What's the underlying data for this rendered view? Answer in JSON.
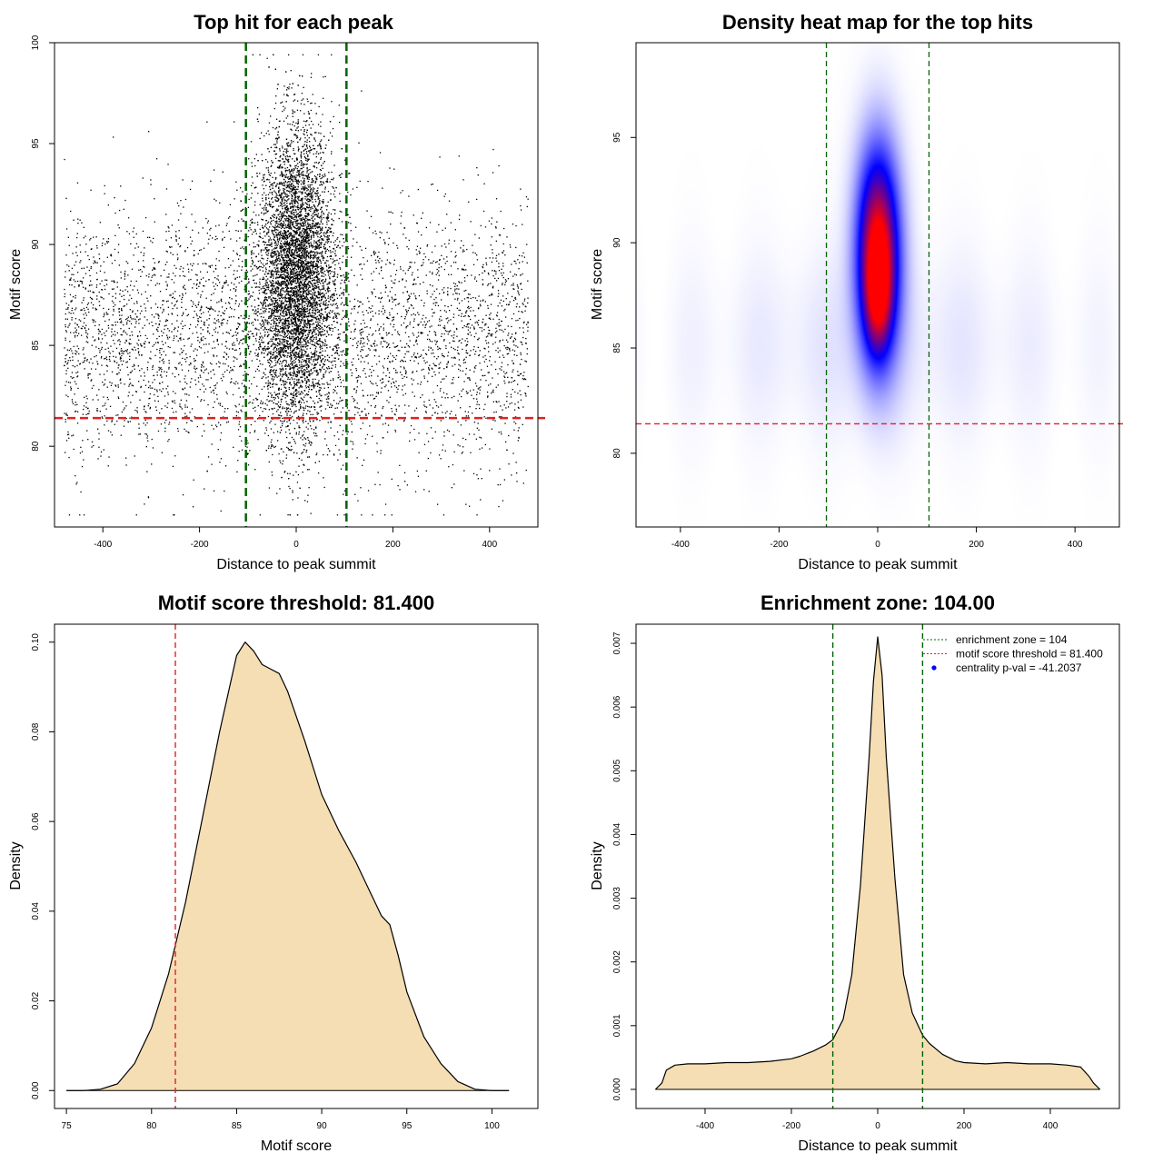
{
  "chart_data": [
    {
      "type": "scatter",
      "title": "Top hit for each peak",
      "xlabel": "Distance to peak summit",
      "ylabel": "Motif score",
      "xlim": [
        -500,
        500
      ],
      "ylim": [
        76,
        100
      ],
      "xticks": [
        -400,
        -200,
        0,
        200,
        400
      ],
      "yticks": [
        80,
        85,
        90,
        95,
        100
      ],
      "point_color": "#000000",
      "vlines": {
        "values": [
          -104,
          104
        ],
        "color": "#006400",
        "style": "dashed"
      },
      "hlines": {
        "values": [
          81.4
        ],
        "color": "#e32020",
        "style": "dashed"
      },
      "clusters": [
        {
          "x_range": [
            -480,
            480
          ],
          "y_mean": 85.5,
          "y_sd": 3.2,
          "n": 4500
        },
        {
          "x_center": 0,
          "x_sd": 38,
          "y_mean": 88.5,
          "y_sd": 3.6,
          "n": 6500
        }
      ]
    },
    {
      "type": "heatmap",
      "title": "Density heat map for the top hits",
      "xlabel": "Distance to peak summit",
      "ylabel": "Motif score",
      "xlim": [
        -490,
        490
      ],
      "ylim": [
        76.5,
        99.5
      ],
      "xticks": [
        -400,
        -200,
        0,
        200,
        400
      ],
      "yticks": [
        80,
        85,
        90,
        95
      ],
      "colorscale": [
        "#ffffff",
        "#0000ff",
        "#ff0000"
      ],
      "vlines": {
        "values": [
          -104,
          104
        ],
        "color": "#006400",
        "style": "dashed"
      },
      "hlines": {
        "values": [
          81.4
        ],
        "color": "#e32020",
        "style": "dashed"
      },
      "components": [
        {
          "x_center": 0,
          "x_sd": 30,
          "y_center": 89.5,
          "y_sd": 3.4,
          "weight": 1.0
        },
        {
          "x_center": 0,
          "x_sd": 18,
          "y_center": 87.5,
          "y_sd": 1.8,
          "weight": 0.35
        },
        {
          "x_center": 0,
          "x_sd": 270,
          "y_center": 85.2,
          "y_sd": 3.0,
          "weight": 0.045
        }
      ]
    },
    {
      "type": "area",
      "title": "Motif score threshold: 81.400",
      "xlabel": "Motif score",
      "ylabel": "Density",
      "xlim": [
        74.3,
        102.7
      ],
      "ylim": [
        -0.004,
        0.104
      ],
      "xticks": [
        75,
        80,
        85,
        90,
        95,
        100
      ],
      "yticks": [
        0.0,
        0.02,
        0.04,
        0.06,
        0.08,
        0.1
      ],
      "ytick_labels": [
        "0.00",
        "0.02",
        "0.04",
        "0.06",
        "0.08",
        "0.10"
      ],
      "fill": "#f5deb3",
      "vlines": {
        "values": [
          81.4
        ],
        "color": "#e32020",
        "style": "dashed"
      },
      "x": [
        75,
        76,
        77,
        78,
        79,
        80,
        81,
        82,
        83,
        84,
        85,
        85.5,
        86,
        86.5,
        87,
        87.5,
        88,
        89,
        90,
        91,
        92,
        93,
        93.5,
        94,
        94.5,
        95,
        96,
        97,
        98,
        99,
        100,
        101
      ],
      "y": [
        0.0,
        0.0,
        0.0003,
        0.0015,
        0.006,
        0.014,
        0.026,
        0.042,
        0.061,
        0.08,
        0.097,
        0.1,
        0.098,
        0.095,
        0.094,
        0.093,
        0.089,
        0.078,
        0.066,
        0.058,
        0.051,
        0.043,
        0.039,
        0.037,
        0.03,
        0.022,
        0.012,
        0.006,
        0.002,
        0.0003,
        0.0,
        0.0
      ]
    },
    {
      "type": "area",
      "title": "Enrichment zone: 104.00",
      "xlabel": "Distance to peak summit",
      "ylabel": "Density",
      "xlim": [
        -560,
        560
      ],
      "ylim": [
        -0.0003,
        0.0073
      ],
      "xticks": [
        -400,
        -200,
        0,
        200,
        400
      ],
      "yticks": [
        0.0,
        0.001,
        0.002,
        0.003,
        0.004,
        0.005,
        0.006,
        0.007
      ],
      "ytick_labels": [
        "0.000",
        "0.001",
        "0.002",
        "0.003",
        "0.004",
        "0.005",
        "0.006",
        "0.007"
      ],
      "fill": "#f5deb3",
      "vlines": {
        "values": [
          -104,
          104
        ],
        "color": "#006400",
        "style": "dashed"
      },
      "x": [
        -515,
        -500,
        -490,
        -470,
        -440,
        -400,
        -350,
        -300,
        -250,
        -200,
        -180,
        -150,
        -120,
        -104,
        -80,
        -60,
        -40,
        -20,
        -10,
        0,
        10,
        20,
        40,
        60,
        80,
        104,
        120,
        150,
        180,
        200,
        250,
        300,
        350,
        400,
        440,
        470,
        490,
        500,
        515
      ],
      "y": [
        0.0,
        0.0001,
        0.0003,
        0.00038,
        0.0004,
        0.0004,
        0.00042,
        0.00042,
        0.00044,
        0.00048,
        0.00052,
        0.0006,
        0.0007,
        0.00078,
        0.0011,
        0.0018,
        0.0032,
        0.0052,
        0.0064,
        0.0071,
        0.0065,
        0.0052,
        0.0033,
        0.0018,
        0.0012,
        0.00085,
        0.00072,
        0.00055,
        0.00045,
        0.00042,
        0.0004,
        0.00042,
        0.0004,
        0.0004,
        0.00038,
        0.00035,
        0.0002,
        0.0001,
        0.0
      ],
      "legend": [
        {
          "label": "enrichment zone = 104",
          "color": "#006400",
          "marker": "dotted-line"
        },
        {
          "label": "motif score threshold = 81.400",
          "color": "#e32020",
          "marker": "dotted-line"
        },
        {
          "label": "centrality p-val = -41.2037",
          "color": "#0000ff",
          "marker": "dot"
        }
      ],
      "legend_position": "top-right"
    }
  ]
}
